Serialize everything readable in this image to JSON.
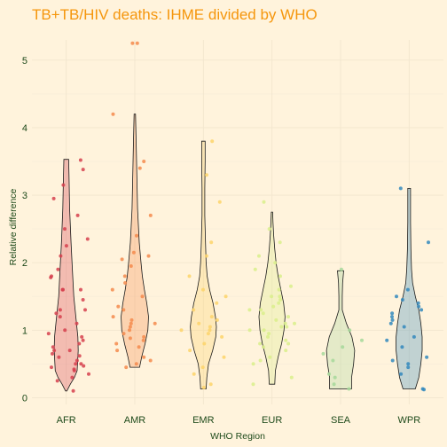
{
  "chart_data": {
    "type": "violin",
    "title": "TB+TB/HIV deaths: IHME divided by WHO",
    "xlabel": "WHO Region",
    "ylabel": "Relative difference",
    "ylim": [
      -0.1,
      5.3
    ],
    "yticks": [
      "0",
      "1",
      "2",
      "3",
      "4",
      "5"
    ],
    "grid": true,
    "legend": "none",
    "background": "#FFF3DC",
    "title_color": "#F5960C",
    "text_color": "#1E4A1A",
    "categories": [
      "AFR",
      "AMR",
      "EMR",
      "EUR",
      "SEA",
      "WPR"
    ],
    "series": [
      {
        "category": "AFR",
        "color": "#D6404E",
        "violin": [
          [
            0.1,
            0.02
          ],
          [
            0.2,
            0.12
          ],
          [
            0.3,
            0.24
          ],
          [
            0.4,
            0.32
          ],
          [
            0.5,
            0.33
          ],
          [
            0.7,
            0.35
          ],
          [
            0.9,
            0.34
          ],
          [
            1.2,
            0.28
          ],
          [
            1.5,
            0.22
          ],
          [
            1.9,
            0.18
          ],
          [
            2.3,
            0.14
          ],
          [
            2.8,
            0.1
          ],
          [
            3.3,
            0.08
          ],
          [
            3.53,
            0.07
          ]
        ],
        "points": [
          0.1,
          0.25,
          0.3,
          0.35,
          0.4,
          0.42,
          0.45,
          0.47,
          0.5,
          0.5,
          0.55,
          0.6,
          0.62,
          0.65,
          0.7,
          0.7,
          0.75,
          0.8,
          0.85,
          0.9,
          0.95,
          1.0,
          1.1,
          1.2,
          1.25,
          1.3,
          1.3,
          1.45,
          1.6,
          1.6,
          1.6,
          1.8,
          1.78,
          1.9,
          2.1,
          2.25,
          2.35,
          2.5,
          2.7,
          2.95,
          3.15,
          3.38,
          3.52
        ]
      },
      {
        "category": "AMR",
        "color": "#F58A4C",
        "violin": [
          [
            0.45,
            0.14
          ],
          [
            0.6,
            0.2
          ],
          [
            0.8,
            0.3
          ],
          [
            1.0,
            0.38
          ],
          [
            1.2,
            0.4
          ],
          [
            1.4,
            0.35
          ],
          [
            1.6,
            0.28
          ],
          [
            1.8,
            0.22
          ],
          [
            2.0,
            0.18
          ],
          [
            2.3,
            0.13
          ],
          [
            2.8,
            0.08
          ],
          [
            3.3,
            0.06
          ],
          [
            3.8,
            0.04
          ],
          [
            4.2,
            0.02
          ]
        ],
        "points": [
          0.45,
          0.5,
          0.55,
          0.6,
          0.7,
          0.75,
          0.8,
          0.85,
          0.88,
          0.9,
          0.95,
          1.0,
          1.05,
          1.1,
          1.1,
          1.15,
          1.2,
          1.3,
          1.35,
          1.5,
          1.6,
          1.7,
          1.8,
          1.95,
          2.05,
          2.1,
          2.15,
          2.4,
          2.7,
          3.4,
          3.5,
          4.2,
          5.25,
          5.25
        ]
      },
      {
        "category": "EMR",
        "color": "#FDD46A",
        "violin": [
          [
            0.13,
            0.08
          ],
          [
            0.3,
            0.1
          ],
          [
            0.5,
            0.15
          ],
          [
            0.7,
            0.27
          ],
          [
            0.9,
            0.36
          ],
          [
            1.05,
            0.38
          ],
          [
            1.2,
            0.35
          ],
          [
            1.4,
            0.28
          ],
          [
            1.6,
            0.18
          ],
          [
            1.8,
            0.11
          ],
          [
            2.0,
            0.08
          ],
          [
            2.3,
            0.06
          ],
          [
            2.7,
            0.04
          ],
          [
            3.1,
            0.04
          ],
          [
            3.5,
            0.05
          ],
          [
            3.8,
            0.05
          ]
        ],
        "points": [
          0.15,
          0.2,
          0.35,
          0.45,
          0.6,
          0.7,
          0.8,
          0.9,
          0.95,
          1.0,
          1.0,
          1.05,
          1.1,
          1.15,
          1.2,
          1.3,
          1.4,
          1.5,
          1.6,
          1.8,
          2.1,
          2.3,
          2.9,
          3.3,
          3.8
        ]
      },
      {
        "category": "EUR",
        "color": "#D9EF8B",
        "violin": [
          [
            0.2,
            0.08
          ],
          [
            0.4,
            0.1
          ],
          [
            0.6,
            0.18
          ],
          [
            0.8,
            0.28
          ],
          [
            1.0,
            0.35
          ],
          [
            1.2,
            0.38
          ],
          [
            1.4,
            0.34
          ],
          [
            1.6,
            0.26
          ],
          [
            1.8,
            0.18
          ],
          [
            2.0,
            0.12
          ],
          [
            2.2,
            0.08
          ],
          [
            2.4,
            0.05
          ],
          [
            2.6,
            0.03
          ],
          [
            2.75,
            0.02
          ]
        ],
        "points": [
          0.2,
          0.3,
          0.5,
          0.55,
          0.6,
          0.7,
          0.75,
          0.8,
          0.8,
          0.85,
          0.9,
          0.95,
          1.0,
          1.0,
          1.05,
          1.05,
          1.1,
          1.1,
          1.15,
          1.2,
          1.25,
          1.3,
          1.3,
          1.35,
          1.4,
          1.45,
          1.5,
          1.5,
          1.6,
          1.65,
          1.8,
          1.9,
          2.0,
          2.1,
          2.3,
          2.5,
          2.9
        ]
      },
      {
        "category": "SEA",
        "color": "#A6D89A",
        "violin": [
          [
            0.13,
            0.32
          ],
          [
            0.3,
            0.32
          ],
          [
            0.5,
            0.38
          ],
          [
            0.7,
            0.41
          ],
          [
            0.9,
            0.33
          ],
          [
            1.1,
            0.17
          ],
          [
            1.3,
            0.05
          ],
          [
            1.5,
            0.05
          ],
          [
            1.7,
            0.06
          ],
          [
            1.88,
            0.09
          ]
        ],
        "points": [
          0.13,
          0.2,
          0.3,
          0.35,
          0.55,
          0.65,
          0.75,
          0.85,
          1.0,
          1.9
        ]
      },
      {
        "category": "WPR",
        "color": "#3288BD",
        "violin": [
          [
            0.13,
            0.18
          ],
          [
            0.3,
            0.28
          ],
          [
            0.5,
            0.34
          ],
          [
            0.7,
            0.38
          ],
          [
            0.9,
            0.38
          ],
          [
            1.1,
            0.34
          ],
          [
            1.3,
            0.28
          ],
          [
            1.5,
            0.18
          ],
          [
            1.7,
            0.1
          ],
          [
            1.9,
            0.07
          ],
          [
            2.2,
            0.05
          ],
          [
            2.6,
            0.04
          ],
          [
            3.1,
            0.04
          ]
        ],
        "points": [
          0.12,
          0.13,
          0.35,
          0.45,
          0.5,
          0.55,
          0.6,
          0.75,
          0.85,
          0.9,
          1.05,
          1.1,
          1.15,
          1.2,
          1.25,
          1.3,
          1.35,
          1.4,
          1.45,
          1.5,
          1.6,
          2.3,
          3.1
        ]
      }
    ]
  }
}
